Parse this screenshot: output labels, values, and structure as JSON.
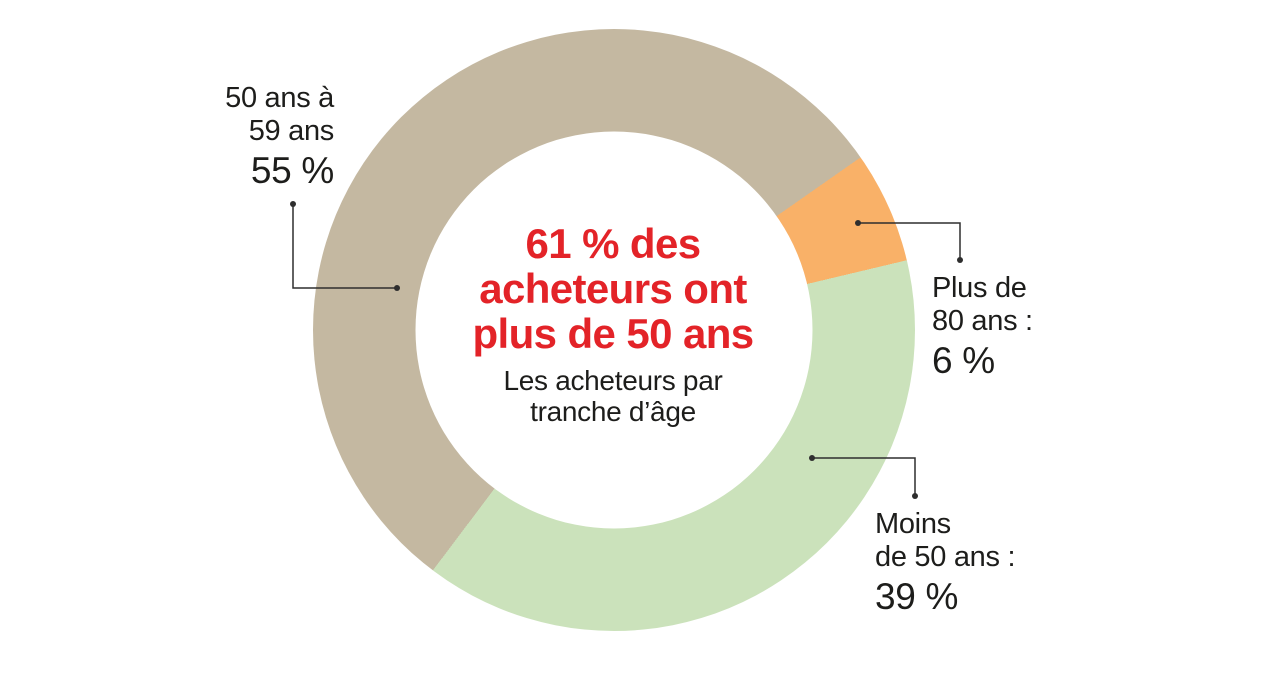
{
  "chart_data": {
    "type": "pie",
    "subtype": "donut",
    "title": "Les acheteurs par tranche d’âge",
    "center_annotation": "61 % des acheteurs ont plus de 50 ans",
    "categories": [
      "50 ans à 59 ans",
      "Plus de 80 ans",
      "Moins de 50 ans"
    ],
    "values": [
      55,
      6,
      39
    ],
    "unit": "%",
    "colors": [
      "#c4b8a1",
      "#f9b168",
      "#cbe2bb"
    ],
    "start_angle_deg": 217,
    "hole_ratio": 0.66,
    "legend_position": "callouts"
  },
  "center": {
    "headline_color": "#e32328",
    "headline_line1": "61 % des",
    "headline_line2": "acheteurs ont",
    "headline_line3": "plus de 50 ans",
    "subtitle_line1": "Les acheteurs par",
    "subtitle_line2": "tranche d’âge"
  },
  "callouts": {
    "age_50_59": {
      "line1": "50 ans à",
      "line2": "59 ans",
      "value": "55 %"
    },
    "age_80_plus": {
      "line1": "Plus de",
      "line2": "80 ans :",
      "value": "6 %"
    },
    "age_under_50": {
      "line1": "Moins",
      "line2": "de 50 ans :",
      "value": "39 %"
    }
  }
}
